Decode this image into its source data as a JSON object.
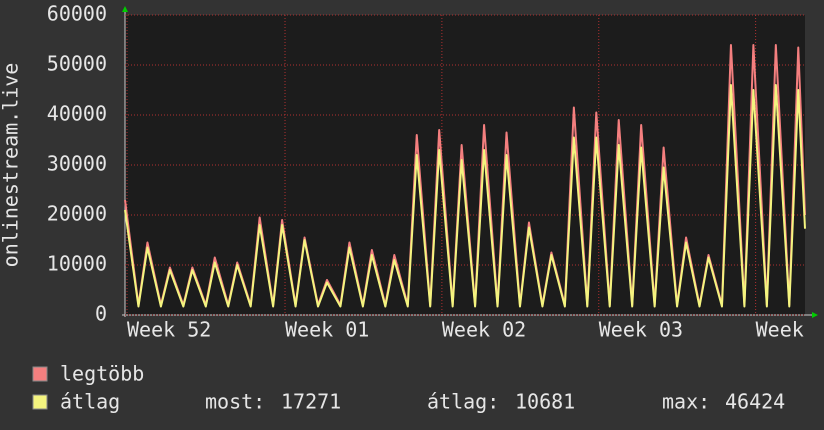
{
  "chart_data": {
    "type": "line",
    "y_label": "onlinestream.live",
    "x": [
      0,
      0.6,
      1,
      1.6,
      2,
      2.6,
      3,
      3.6,
      4,
      4.6,
      5,
      5.6,
      6,
      6.6,
      7,
      7.6,
      8,
      8.6,
      9,
      9.6,
      10,
      10.6,
      11,
      11.6,
      12,
      12.6,
      13,
      13.6,
      14,
      14.6,
      15,
      15.6,
      16,
      16.6,
      17,
      17.6,
      18,
      18.6,
      19,
      19.6,
      20,
      20.6,
      21,
      21.6,
      22,
      22.6,
      23,
      23.6,
      24,
      24.6,
      25,
      25.6,
      26,
      26.6,
      27,
      27.6,
      28,
      28.6,
      29,
      29.6,
      30,
      30.3
    ],
    "series": [
      {
        "name": "legtöbb",
        "color": "#f47f7f",
        "values": [
          23000,
          2000,
          14500,
          2000,
          9500,
          2000,
          9500,
          2000,
          11500,
          2000,
          10500,
          2000,
          19500,
          2000,
          19000,
          2000,
          15500,
          2000,
          7000,
          2000,
          14500,
          2000,
          13000,
          2000,
          12000,
          2000,
          36000,
          2000,
          37000,
          2000,
          34000,
          2000,
          38000,
          2000,
          36500,
          2000,
          18500,
          2000,
          12500,
          2000,
          41500,
          2000,
          40500,
          2000,
          39000,
          2000,
          38000,
          2000,
          33500,
          2000,
          15500,
          2000,
          12000,
          2000,
          54000,
          2000,
          54000,
          2000,
          54000,
          2000,
          53500,
          20000
        ]
      },
      {
        "name": "átlag",
        "color": "#f4f47f",
        "values": [
          21000,
          1700,
          13500,
          1700,
          9000,
          1700,
          9000,
          1700,
          10500,
          1700,
          10000,
          1700,
          18000,
          1700,
          18000,
          1700,
          15000,
          1700,
          6500,
          1700,
          13500,
          1700,
          12000,
          1700,
          11000,
          1700,
          32000,
          1700,
          33000,
          1700,
          31000,
          1700,
          33000,
          1700,
          32000,
          1700,
          17500,
          1700,
          12000,
          1700,
          35500,
          1700,
          35500,
          1700,
          34000,
          1700,
          33500,
          1700,
          29500,
          1700,
          14500,
          1700,
          11500,
          1700,
          46000,
          1700,
          45000,
          1700,
          46000,
          1700,
          45000,
          17271
        ]
      }
    ],
    "xlim": [
      0,
      30.3
    ],
    "xticks": [
      {
        "value": 0.09,
        "label": "Week 52"
      },
      {
        "value": 7.13,
        "label": "Week 01"
      },
      {
        "value": 14.12,
        "label": "Week 02"
      },
      {
        "value": 21.11,
        "label": "Week 03"
      },
      {
        "value": 28.1,
        "label": "Week"
      }
    ],
    "ylim": [
      0,
      60000
    ],
    "yticks": [
      0,
      10000,
      20000,
      30000,
      40000,
      50000,
      60000
    ],
    "grid": true,
    "stats": [
      {
        "label": "most:",
        "value": 17271
      },
      {
        "label": "átlag:",
        "value": 10681
      },
      {
        "label": "max:",
        "value": 46424
      }
    ]
  }
}
